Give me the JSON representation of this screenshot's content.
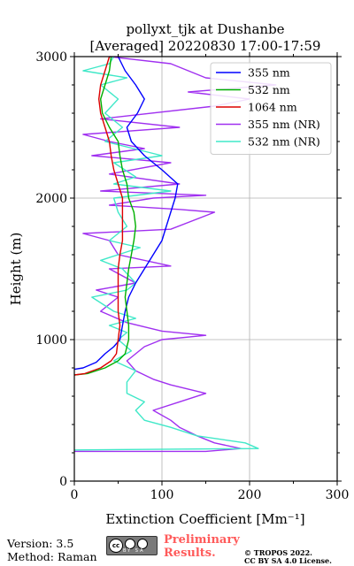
{
  "chart_data": {
    "type": "line",
    "title_line1": "pollyxt_tjk at Dushanbe",
    "title_line2": "[Averaged] 20220830 17:00-17:59",
    "xlabel": "Extinction Coefficient [Mm⁻¹]",
    "ylabel": "Height (m)",
    "xlim": [
      0,
      300
    ],
    "ylim": [
      0,
      3000
    ],
    "xticks": [
      0,
      100,
      200,
      300
    ],
    "yticks": [
      0,
      1000,
      2000,
      3000
    ],
    "grid": true,
    "legend_position": "top-right",
    "series": [
      {
        "name": "355 nm",
        "color": "#0000ff",
        "points": [
          [
            0,
            790
          ],
          [
            10,
            800
          ],
          [
            25,
            840
          ],
          [
            35,
            900
          ],
          [
            45,
            950
          ],
          [
            52,
            1000
          ],
          [
            55,
            1100
          ],
          [
            58,
            1200
          ],
          [
            62,
            1300
          ],
          [
            70,
            1400
          ],
          [
            80,
            1500
          ],
          [
            90,
            1600
          ],
          [
            100,
            1700
          ],
          [
            105,
            1800
          ],
          [
            110,
            1900
          ],
          [
            115,
            2000
          ],
          [
            118,
            2100
          ],
          [
            100,
            2200
          ],
          [
            80,
            2300
          ],
          [
            65,
            2400
          ],
          [
            60,
            2500
          ],
          [
            72,
            2600
          ],
          [
            80,
            2700
          ],
          [
            70,
            2800
          ],
          [
            58,
            2900
          ],
          [
            50,
            3000
          ]
        ]
      },
      {
        "name": "532 nm",
        "color": "#00b000",
        "points": [
          [
            0,
            750
          ],
          [
            15,
            760
          ],
          [
            35,
            800
          ],
          [
            50,
            850
          ],
          [
            58,
            900
          ],
          [
            62,
            1000
          ],
          [
            62,
            1100
          ],
          [
            60,
            1200
          ],
          [
            58,
            1300
          ],
          [
            60,
            1400
          ],
          [
            62,
            1500
          ],
          [
            65,
            1600
          ],
          [
            68,
            1700
          ],
          [
            70,
            1800
          ],
          [
            68,
            1900
          ],
          [
            62,
            2000
          ],
          [
            60,
            2100
          ],
          [
            55,
            2200
          ],
          [
            52,
            2300
          ],
          [
            50,
            2400
          ],
          [
            40,
            2500
          ],
          [
            32,
            2600
          ],
          [
            30,
            2700
          ],
          [
            35,
            2800
          ],
          [
            40,
            2900
          ],
          [
            42,
            3000
          ]
        ]
      },
      {
        "name": "1064 nm",
        "color": "#dd0000",
        "points": [
          [
            0,
            750
          ],
          [
            12,
            760
          ],
          [
            30,
            800
          ],
          [
            42,
            850
          ],
          [
            48,
            900
          ],
          [
            50,
            1000
          ],
          [
            52,
            1100
          ],
          [
            50,
            1200
          ],
          [
            50,
            1300
          ],
          [
            50,
            1400
          ],
          [
            50,
            1500
          ],
          [
            52,
            1600
          ],
          [
            55,
            1700
          ],
          [
            55,
            1800
          ],
          [
            55,
            1900
          ],
          [
            55,
            2000
          ],
          [
            50,
            2100
          ],
          [
            45,
            2200
          ],
          [
            42,
            2300
          ],
          [
            40,
            2400
          ],
          [
            35,
            2500
          ],
          [
            30,
            2600
          ],
          [
            28,
            2700
          ],
          [
            30,
            2800
          ],
          [
            35,
            2900
          ],
          [
            40,
            3000
          ]
        ]
      },
      {
        "name": "355 nm (NR)",
        "color": "#a030f0",
        "points": [
          [
            0,
            210
          ],
          [
            150,
            210
          ],
          [
            190,
            230
          ],
          [
            160,
            270
          ],
          [
            140,
            320
          ],
          [
            120,
            380
          ],
          [
            110,
            430
          ],
          [
            90,
            500
          ],
          [
            120,
            560
          ],
          [
            150,
            620
          ],
          [
            110,
            680
          ],
          [
            90,
            720
          ],
          [
            70,
            780
          ],
          [
            60,
            850
          ],
          [
            80,
            950
          ],
          [
            100,
            1000
          ],
          [
            150,
            1030
          ],
          [
            100,
            1060
          ],
          [
            60,
            1120
          ],
          [
            30,
            1200
          ],
          [
            50,
            1300
          ],
          [
            25,
            1350
          ],
          [
            70,
            1400
          ],
          [
            40,
            1500
          ],
          [
            110,
            1520
          ],
          [
            50,
            1600
          ],
          [
            40,
            1700
          ],
          [
            10,
            1750
          ],
          [
            110,
            1780
          ],
          [
            160,
            1900
          ],
          [
            120,
            1920
          ],
          [
            40,
            1950
          ],
          [
            90,
            2000
          ],
          [
            150,
            2020
          ],
          [
            30,
            2050
          ],
          [
            120,
            2100
          ],
          [
            40,
            2170
          ],
          [
            110,
            2250
          ],
          [
            20,
            2300
          ],
          [
            80,
            2350
          ],
          [
            40,
            2400
          ],
          [
            10,
            2450
          ],
          [
            120,
            2500
          ],
          [
            30,
            2560
          ],
          [
            160,
            2650
          ],
          [
            200,
            2700
          ],
          [
            130,
            2750
          ],
          [
            230,
            2800
          ],
          [
            150,
            2850
          ],
          [
            110,
            2950
          ],
          [
            40,
            3000
          ]
        ]
      },
      {
        "name": "532 nm (NR)",
        "color": "#40e8c8",
        "points": [
          [
            0,
            220
          ],
          [
            210,
            230
          ],
          [
            195,
            270
          ],
          [
            140,
            320
          ],
          [
            110,
            380
          ],
          [
            80,
            430
          ],
          [
            70,
            500
          ],
          [
            80,
            560
          ],
          [
            60,
            620
          ],
          [
            60,
            700
          ],
          [
            70,
            780
          ],
          [
            45,
            850
          ],
          [
            65,
            920
          ],
          [
            50,
            1000
          ],
          [
            60,
            1050
          ],
          [
            40,
            1100
          ],
          [
            70,
            1150
          ],
          [
            45,
            1200
          ],
          [
            20,
            1300
          ],
          [
            60,
            1350
          ],
          [
            70,
            1400
          ],
          [
            55,
            1500
          ],
          [
            30,
            1560
          ],
          [
            50,
            1600
          ],
          [
            75,
            1650
          ],
          [
            40,
            1700
          ],
          [
            60,
            1800
          ],
          [
            50,
            1900
          ],
          [
            45,
            2000
          ],
          [
            110,
            2050
          ],
          [
            45,
            2100
          ],
          [
            70,
            2150
          ],
          [
            45,
            2250
          ],
          [
            100,
            2300
          ],
          [
            35,
            2400
          ],
          [
            55,
            2500
          ],
          [
            35,
            2600
          ],
          [
            50,
            2700
          ],
          [
            30,
            2800
          ],
          [
            60,
            2850
          ],
          [
            10,
            2900
          ],
          [
            40,
            2950
          ],
          [
            45,
            3000
          ]
        ]
      }
    ]
  },
  "footer": {
    "version": "Version: 3.5",
    "method": "Method: Raman",
    "cc_badge": "cc-by-sa-badge",
    "prelim_line1": "Preliminary",
    "prelim_line2": "Results.",
    "prelim_color": "#ff5a5a",
    "copyright_line1": "© TROPOS 2022.",
    "copyright_line2": "CC BY SA 4.0 License."
  }
}
